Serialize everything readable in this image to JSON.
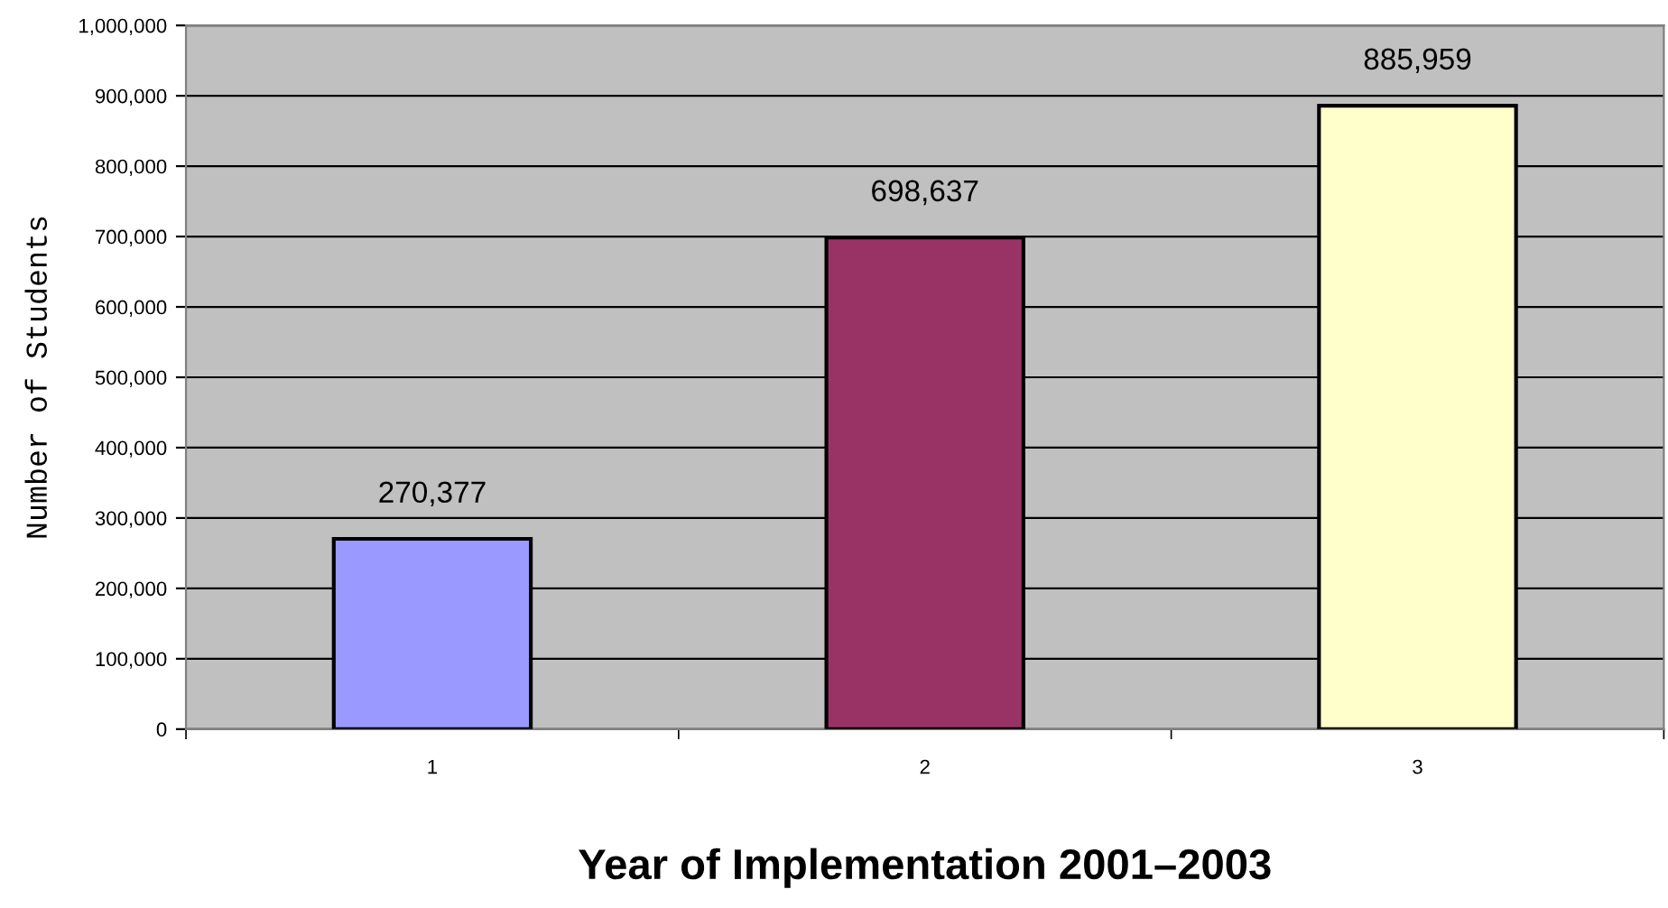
{
  "chart_data": {
    "type": "bar",
    "xlabel": "Year of Implementation 2001–2003",
    "ylabel": "Number of Students",
    "categories": [
      "1",
      "2",
      "3"
    ],
    "values": [
      270377,
      698637,
      885959
    ],
    "colors": [
      "#9999ff",
      "#993366",
      "#ffffcc"
    ],
    "ylim": [
      0,
      1000000
    ],
    "yticks": [
      {
        "value": 0,
        "label": "0"
      },
      {
        "value": 100000,
        "label": "100,000"
      },
      {
        "value": 200000,
        "label": "200,000"
      },
      {
        "value": 300000,
        "label": "300,000"
      },
      {
        "value": 400000,
        "label": "400,000"
      },
      {
        "value": 500000,
        "label": "500,000"
      },
      {
        "value": 600000,
        "label": "600,000"
      },
      {
        "value": 700000,
        "label": "700,000"
      },
      {
        "value": 800000,
        "label": "800,000"
      },
      {
        "value": 900000,
        "label": "900,000"
      },
      {
        "value": 1000000,
        "label": "1,000,000"
      }
    ],
    "grid": "y",
    "value_labels": [
      "270,377",
      "698,637",
      "885,959"
    ]
  }
}
